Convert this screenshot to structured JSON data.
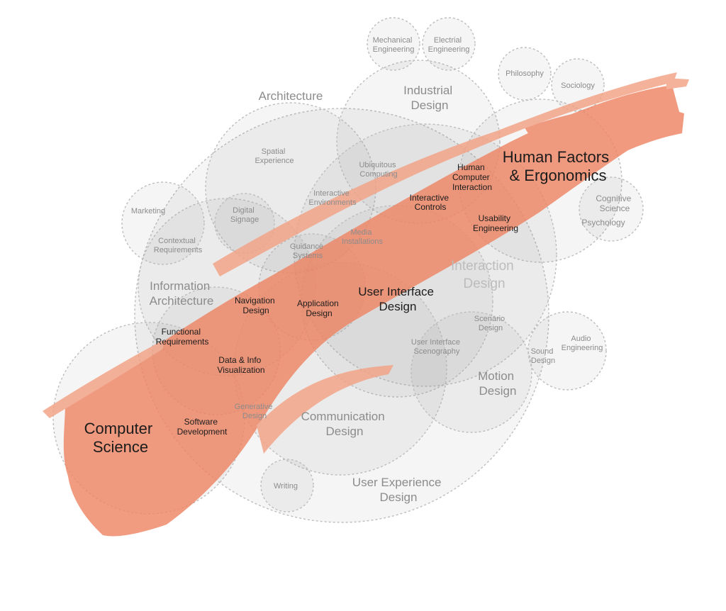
{
  "diagram": {
    "colors": {
      "brush": "#ee8564",
      "brush_light": "#f3a285",
      "circle_stroke": "#bdbdbd",
      "label_grey": "#8c8c8c",
      "label_dark": "#1c1c1c",
      "label_muted": "#bcbcbc"
    },
    "labels": {
      "mechanical_engineering": [
        "Mechanical",
        "Engineering"
      ],
      "electrical_engineering": [
        "Electrial",
        "Engineering"
      ],
      "philosophy": [
        "Philosophy"
      ],
      "sociology": [
        "Sociology"
      ],
      "architecture": [
        "Architecture"
      ],
      "industrial_design": [
        "Industrial",
        "Design"
      ],
      "human_factors": [
        "Human Factors",
        "& Ergonomics"
      ],
      "spatial_experience": [
        "Spatial",
        "Experience"
      ],
      "ubiquitous_computing": [
        "Ubiquitous",
        "Computing"
      ],
      "hci": [
        "Human",
        "Computer",
        "Interaction"
      ],
      "interactive_environments": [
        "Interactive",
        "Environments"
      ],
      "interactive_controls": [
        "Interactive",
        "Controls"
      ],
      "cognitive_science": [
        "Cognitive",
        "Science"
      ],
      "marketing": [
        "Marketing"
      ],
      "digital_signage": [
        "Digital",
        "Signage"
      ],
      "usability_engineering": [
        "Usability",
        "Engineering"
      ],
      "psychology": [
        "Psychology"
      ],
      "contextual_requirements": [
        "Contextual",
        "Requirements"
      ],
      "media_installations": [
        "Media",
        "Installations"
      ],
      "guidance_systems": [
        "Guidance",
        "Systems"
      ],
      "interaction_design": [
        "Interaction",
        "Design"
      ],
      "information_architecture": [
        "Information",
        "Architecture"
      ],
      "navigation_design": [
        "Navigation",
        "Design"
      ],
      "application_design": [
        "Application",
        "Design"
      ],
      "user_interface_design": [
        "User Interface",
        "Design"
      ],
      "scenario_design": [
        "Scenario",
        "Design"
      ],
      "functional_requirements": [
        "Functional",
        "Requirements"
      ],
      "user_interface_scenography": [
        "User Interface",
        "Scenography"
      ],
      "audio_engineering": [
        "Audio",
        "Engineering"
      ],
      "data_info_visualization": [
        "Data & Info",
        "Visualization"
      ],
      "sound_design": [
        "Sound",
        "Design"
      ],
      "motion_design": [
        "Motion",
        "Design"
      ],
      "generative_design": [
        "Generative",
        "Design"
      ],
      "computer_science": [
        "Computer",
        "Science"
      ],
      "software_development": [
        "Software",
        "Development"
      ],
      "communication_design": [
        "Communication",
        "Design"
      ],
      "writing": [
        "Writing"
      ],
      "user_experience_design": [
        "User Experience",
        "Design"
      ]
    }
  }
}
